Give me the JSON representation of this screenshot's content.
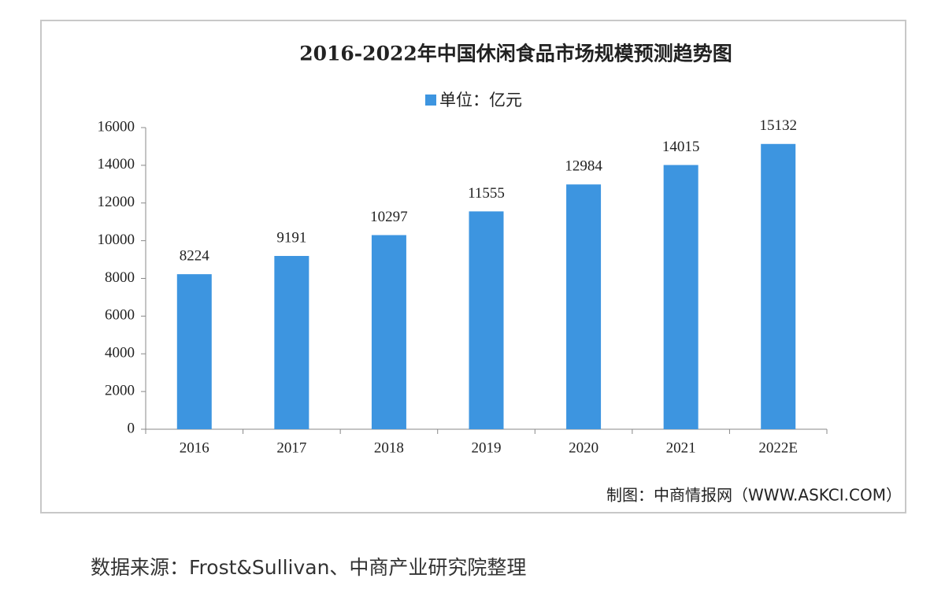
{
  "chart_data": {
    "type": "bar",
    "title": "2016-2022年中国休闲食品市场规模预测趋势图",
    "categories": [
      "2016",
      "2017",
      "2018",
      "2019",
      "2020",
      "2021",
      "2022E"
    ],
    "series": [
      {
        "name": "单位：亿元",
        "color": "#3d95e0",
        "values": [
          8224,
          9191,
          10297,
          11555,
          12984,
          14015,
          15132
        ]
      }
    ],
    "ylim": [
      0,
      16000
    ],
    "yticks": [
      0,
      2000,
      4000,
      6000,
      8000,
      10000,
      12000,
      14000,
      16000
    ],
    "grid": false,
    "legend": "top",
    "credit": "制图：中商情报网（WWW.ASKCI.COM）"
  },
  "source": "数据来源：Frost&Sullivan、中商产业研究院整理"
}
